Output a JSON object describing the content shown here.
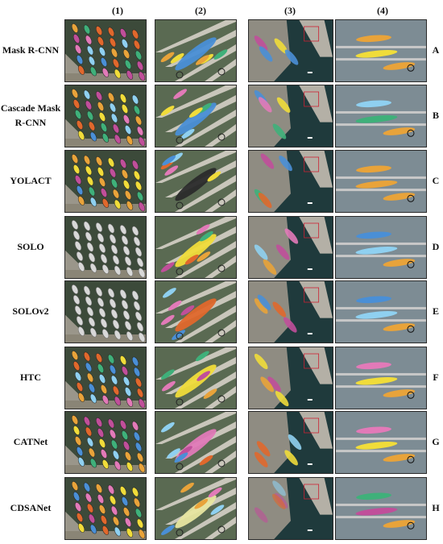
{
  "columns": [
    "(1)",
    "(2)",
    "(3)",
    "(4)"
  ],
  "rows": [
    {
      "method": "Mask R-CNN",
      "letter": "A"
    },
    {
      "method": "Cascade Mask\nR-CNN",
      "letter": "B"
    },
    {
      "method": "YOLACT",
      "letter": "C"
    },
    {
      "method": "SOLO",
      "letter": "D"
    },
    {
      "method": "SOLOv2",
      "letter": "E"
    },
    {
      "method": "HTC",
      "letter": "F"
    },
    {
      "method": "CATNet",
      "letter": "G"
    },
    {
      "method": "CDSANet",
      "letter": "H"
    }
  ],
  "colors": {
    "dock_land": "#8c8878",
    "water_col2": "#5a6a52",
    "water_col3": "#1f3a3c",
    "water_col4": "#7d8c94",
    "mask_palette": [
      "#e8a33a",
      "#4a8fd6",
      "#e27ab8",
      "#f0dc3a",
      "#3fb07a",
      "#e0682c",
      "#8fd0f0",
      "#c04f9a"
    ]
  }
}
